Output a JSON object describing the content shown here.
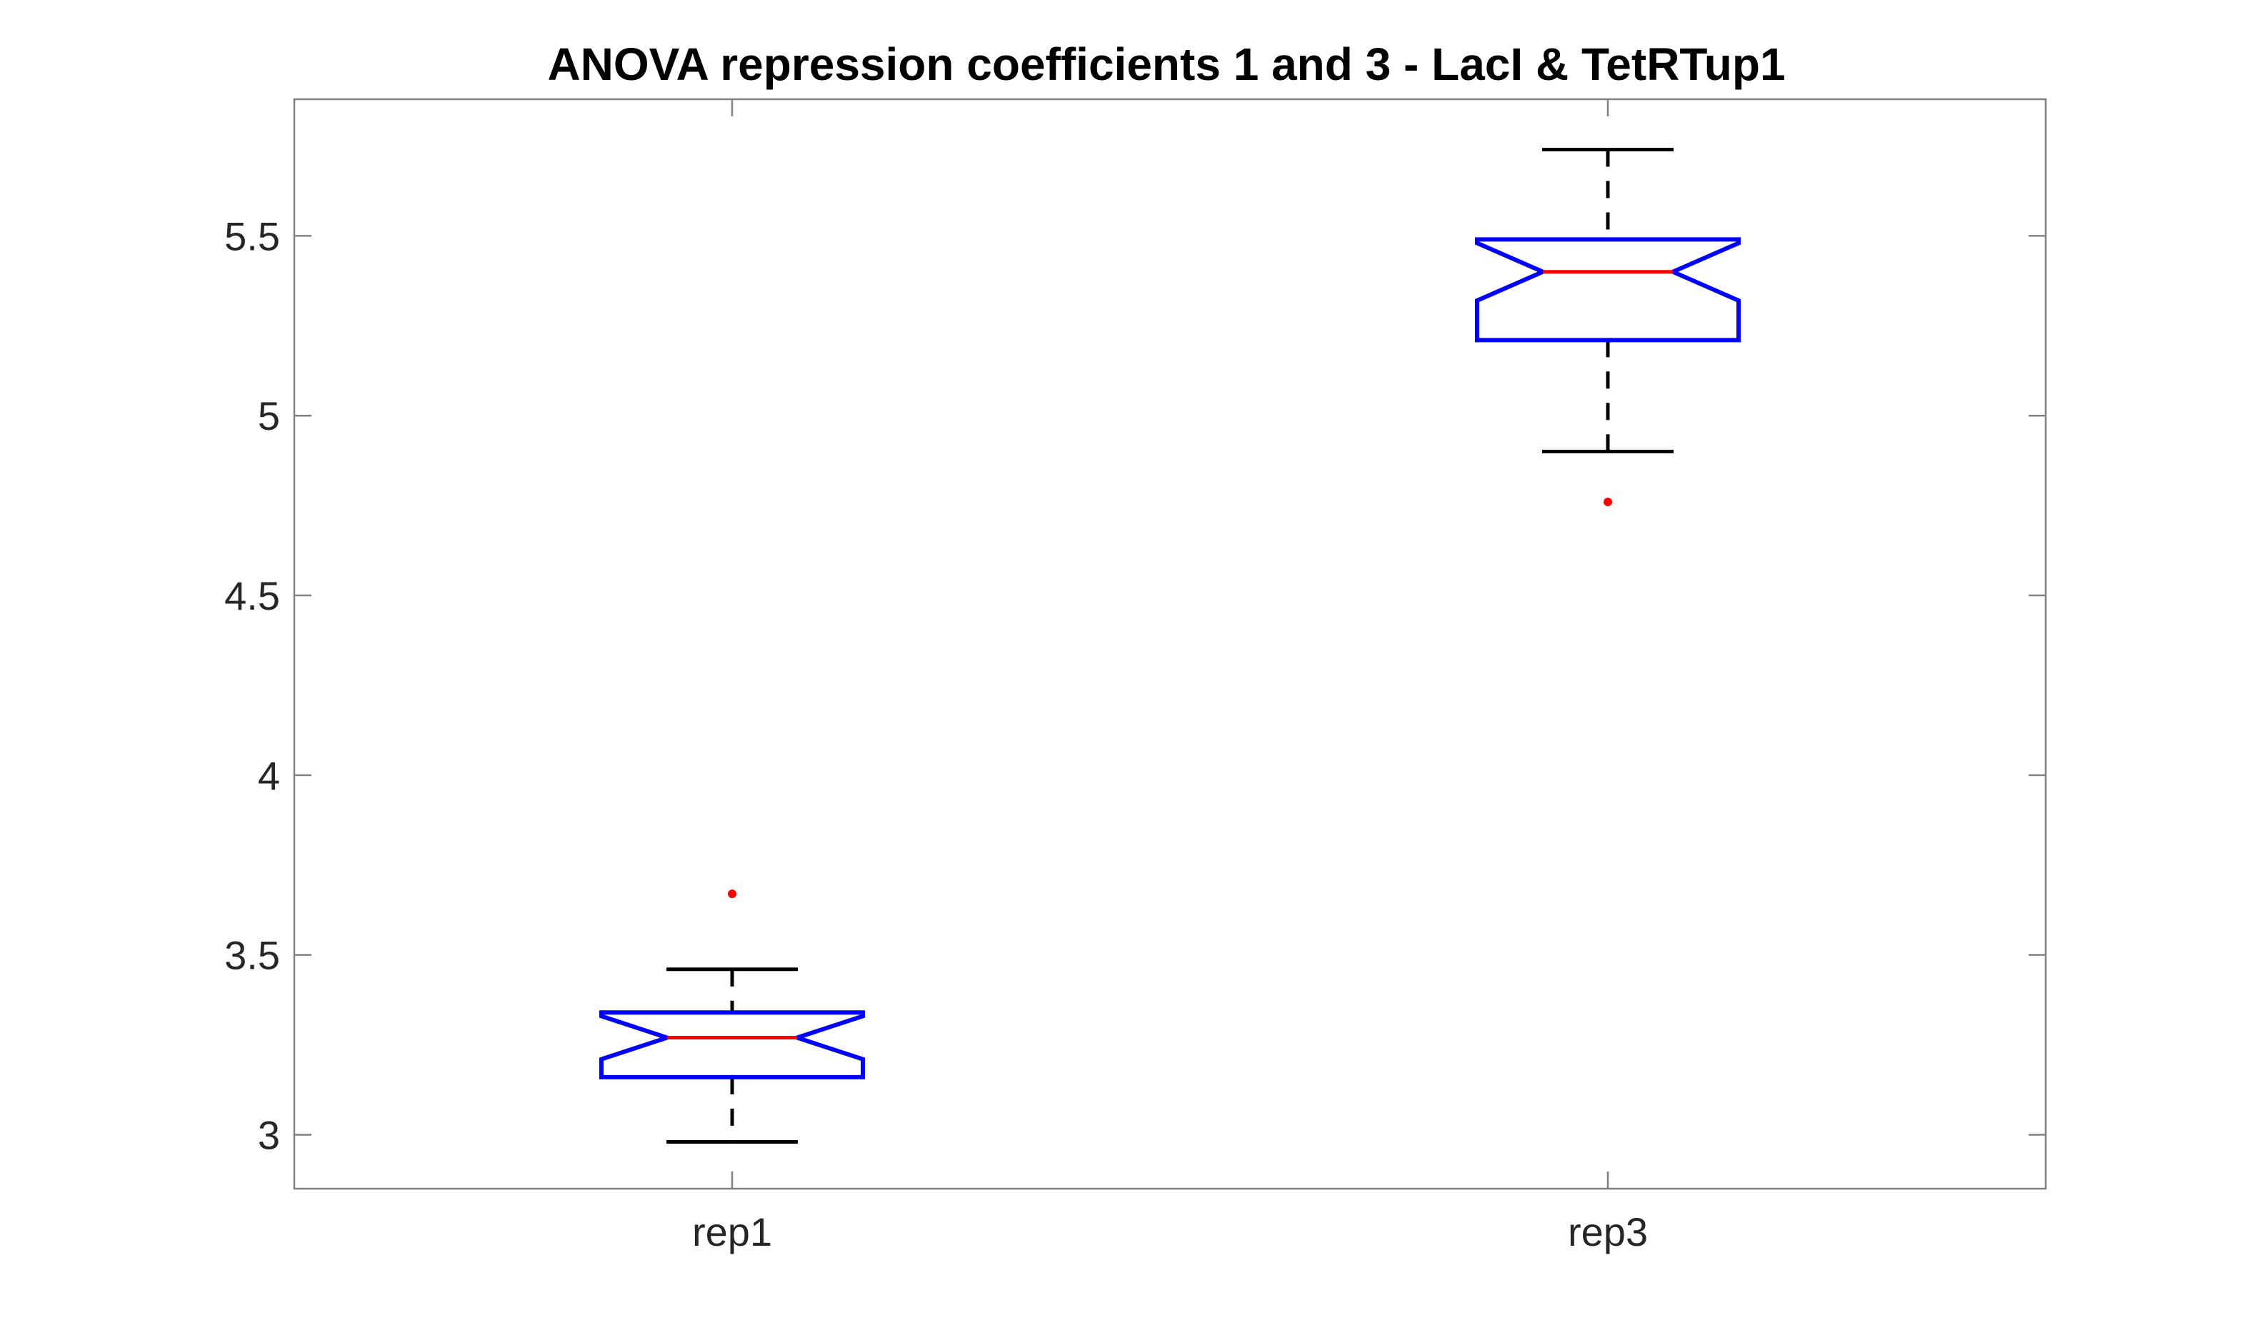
{
  "chart_data": {
    "type": "boxplot",
    "title": "ANOVA repression coefficients 1 and 3 - LacI & TetRTup1",
    "xlabel": "",
    "ylabel": "",
    "categories": [
      "rep1",
      "rep3"
    ],
    "ylim": [
      2.85,
      5.88
    ],
    "yticks": [
      3,
      3.5,
      4,
      4.5,
      5,
      5.5
    ],
    "ytick_labels": [
      "3",
      "3.5",
      "4",
      "4.5",
      "5",
      "5.5"
    ],
    "notched": true,
    "boxes": [
      {
        "label": "rep1",
        "whisker_low": 2.98,
        "q1": 3.16,
        "median": 3.27,
        "q3": 3.34,
        "whisker_high": 3.46,
        "notch_low": 3.21,
        "notch_high": 3.33,
        "outliers": [
          3.67
        ]
      },
      {
        "label": "rep3",
        "whisker_low": 4.9,
        "q1": 5.21,
        "median": 5.4,
        "q3": 5.49,
        "whisker_high": 5.74,
        "notch_low": 5.32,
        "notch_high": 5.48,
        "outliers": [
          4.76
        ]
      }
    ],
    "colors": {
      "box": "#0000ff",
      "median": "#ff0000",
      "whisker": "#000000",
      "outlier": "#ff0000",
      "axes": "#808080",
      "tick_label": "#262626"
    },
    "grid": false,
    "legend": "none"
  }
}
